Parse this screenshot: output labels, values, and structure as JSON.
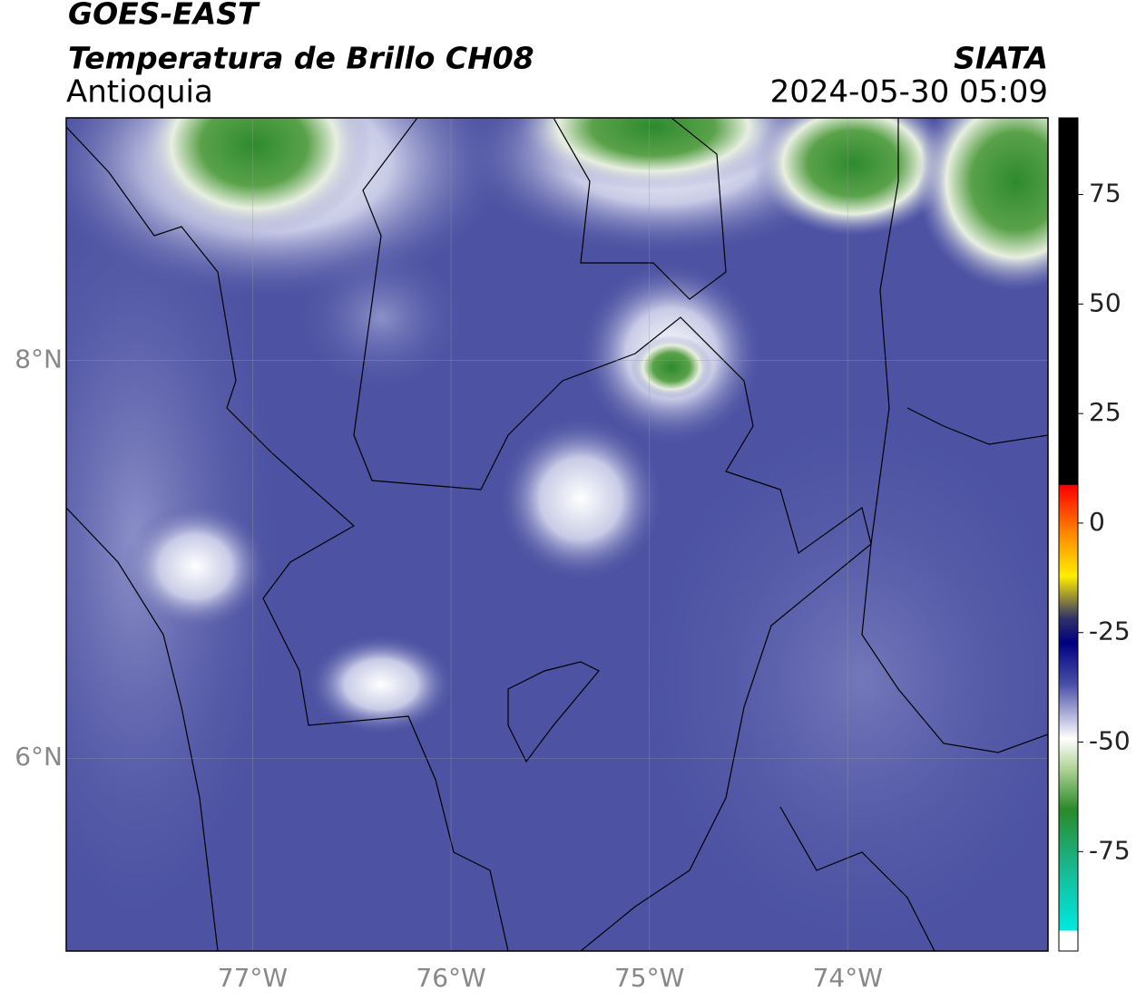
{
  "header": {
    "satellite": "GOES-EAST",
    "product": "Temperatura de Brillo CH08",
    "region": "Antioquia",
    "source": "SIATA",
    "datetime": "2024-05-30 05:09"
  },
  "map": {
    "xlim": [
      -77.94,
      -72.99
    ],
    "ylim": [
      5.03,
      9.22
    ],
    "xticks": [
      {
        "value": -77,
        "label": "77°W"
      },
      {
        "value": -76,
        "label": "76°W"
      },
      {
        "value": -75,
        "label": "75°W"
      },
      {
        "value": -74,
        "label": "74°W"
      }
    ],
    "yticks": [
      {
        "value": 8,
        "label": "8°N"
      },
      {
        "value": 6,
        "label": "6°N"
      }
    ]
  },
  "colorbar": {
    "range": [
      -97.7,
      92.5
    ],
    "ticks": [
      75,
      50,
      25,
      0,
      -25,
      -50,
      -75
    ]
  }
}
